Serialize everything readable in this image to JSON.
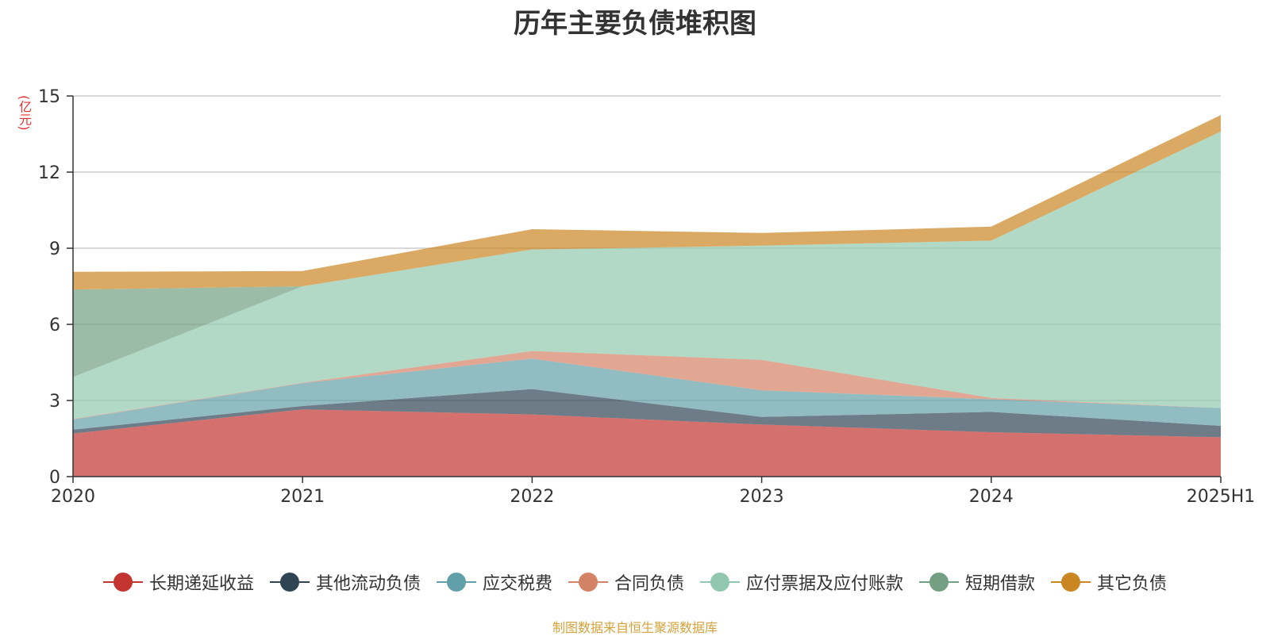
{
  "chart_data": {
    "type": "area",
    "stacked": true,
    "title": "历年主要负债堆积图",
    "ylabel": "(亿元)",
    "categories": [
      "2020",
      "2021",
      "2022",
      "2023",
      "2024",
      "2025H1"
    ],
    "ylim": [
      0,
      15
    ],
    "yticks": [
      "0",
      "3",
      "6",
      "9",
      "12",
      "15"
    ],
    "grid": true,
    "legend_position": "bottom",
    "series": [
      {
        "name": "长期递延收益",
        "color": "#c23531",
        "values": [
          1.7,
          2.65,
          2.45,
          2.05,
          1.75,
          1.55
        ]
      },
      {
        "name": "其他流动负债",
        "color": "#2f4554",
        "values": [
          0.15,
          0.13,
          1.0,
          0.3,
          0.8,
          0.45
        ]
      },
      {
        "name": "应交税费",
        "color": "#61a0a8",
        "values": [
          0.4,
          0.9,
          1.2,
          1.05,
          0.5,
          0.7
        ]
      },
      {
        "name": "合同负债",
        "color": "#d48265",
        "values": [
          0.02,
          0.02,
          0.3,
          1.2,
          0.05,
          0.0
        ]
      },
      {
        "name": "应付票据及应付账款",
        "color": "#91c7ae",
        "values": [
          1.65,
          3.8,
          4.0,
          4.5,
          6.2,
          10.9
        ]
      },
      {
        "name": "短期借款",
        "color": "#749f83",
        "values": [
          3.45,
          0.0,
          0.0,
          0.0,
          0.0,
          0.0
        ]
      },
      {
        "name": "其它负债",
        "color": "#ca8622",
        "values": [
          0.7,
          0.6,
          0.8,
          0.5,
          0.55,
          0.65
        ]
      }
    ]
  },
  "source_note": "制图数据来自恒生聚源数据库"
}
